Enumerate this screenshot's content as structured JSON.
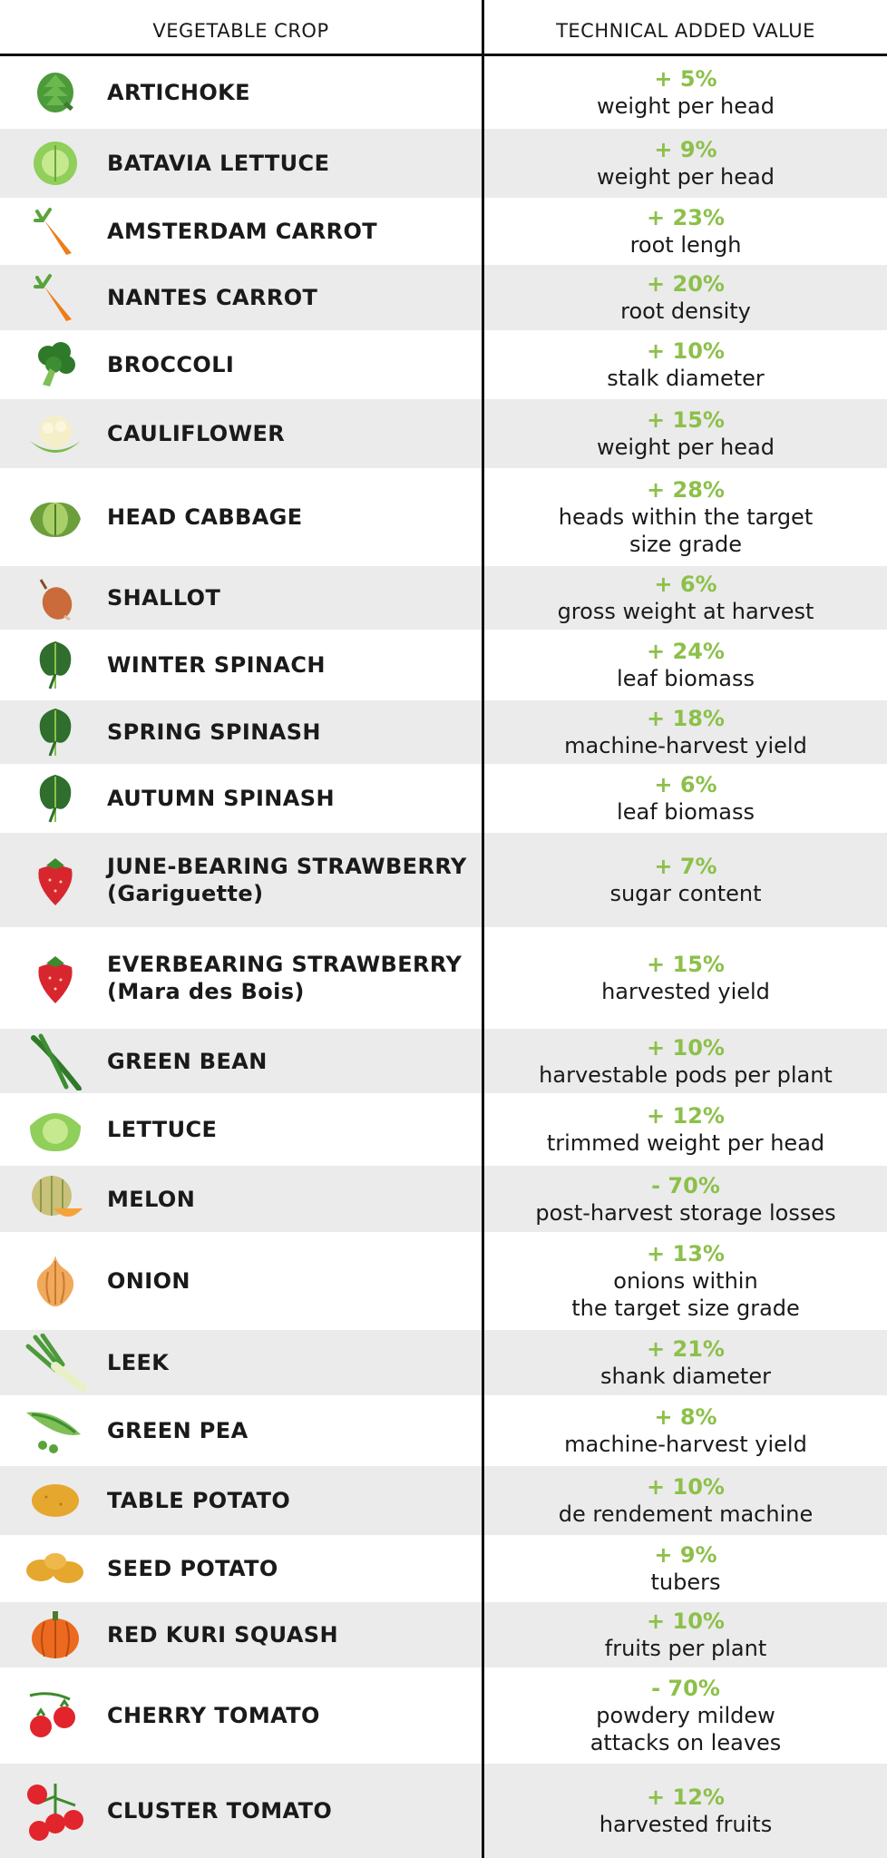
{
  "header": {
    "crop": "VEGETABLE CROP",
    "value": "TECHNICAL ADDED VALUE"
  },
  "colors": {
    "percent": "#8cc04a",
    "shade": "#ebebeb",
    "rule": "#111111"
  },
  "rows": [
    {
      "crop": "ARTICHOKE",
      "sub": "",
      "pct": "+ 5%",
      "desc": "weight per head",
      "desc2": "",
      "icon": "artichoke-icon"
    },
    {
      "crop": "BATAVIA LETTUCE",
      "sub": "",
      "pct": "+ 9%",
      "desc": "weight per head",
      "desc2": "",
      "icon": "batavia-lettuce-icon"
    },
    {
      "crop": "AMSTERDAM CARROT",
      "sub": "",
      "pct": "+ 23%",
      "desc": "root lengh",
      "desc2": "",
      "icon": "carrot-icon"
    },
    {
      "crop": "NANTES CARROT",
      "sub": "",
      "pct": "+ 20%",
      "desc": "root density",
      "desc2": "",
      "icon": "carrot-icon"
    },
    {
      "crop": "BROCCOLI",
      "sub": "",
      "pct": "+ 10%",
      "desc": "stalk diameter",
      "desc2": "",
      "icon": "broccoli-icon"
    },
    {
      "crop": "CAULIFLOWER",
      "sub": "",
      "pct": "+ 15%",
      "desc": "weight per head",
      "desc2": "",
      "icon": "cauliflower-icon"
    },
    {
      "crop": "HEAD CABBAGE",
      "sub": "",
      "pct": "+ 28%",
      "desc": "heads within the target",
      "desc2": "size grade",
      "icon": "cabbage-icon"
    },
    {
      "crop": "SHALLOT",
      "sub": "",
      "pct": "+ 6%",
      "desc": "gross weight at harvest",
      "desc2": "",
      "icon": "shallot-icon"
    },
    {
      "crop": "WINTER SPINACH",
      "sub": "",
      "pct": "+ 24%",
      "desc": "leaf biomass",
      "desc2": "",
      "icon": "spinach-icon"
    },
    {
      "crop": "SPRING SPINASH",
      "sub": "",
      "pct": "+ 18%",
      "desc": "machine-harvest yield",
      "desc2": "",
      "icon": "spinach-icon"
    },
    {
      "crop": "AUTUMN SPINASH",
      "sub": "",
      "pct": "+ 6%",
      "desc": "leaf biomass",
      "desc2": "",
      "icon": "spinach-icon"
    },
    {
      "crop": "JUNE-BEARING STRAWBERRY",
      "sub": "(Gariguette)",
      "pct": "+ 7%",
      "desc": "sugar content",
      "desc2": "",
      "icon": "strawberry-icon"
    },
    {
      "crop": "EVERBEARING STRAWBERRY",
      "sub": "(Mara des Bois)",
      "pct": "+ 15%",
      "desc": "harvested yield",
      "desc2": "",
      "icon": "strawberry-icon"
    },
    {
      "crop": "GREEN BEAN",
      "sub": "",
      "pct": "+ 10%",
      "desc": "harvestable pods per plant",
      "desc2": "",
      "icon": "green-bean-icon"
    },
    {
      "crop": "LETTUCE",
      "sub": "",
      "pct": "+ 12%",
      "desc": "trimmed weight per head",
      "desc2": "",
      "icon": "lettuce-icon"
    },
    {
      "crop": "MELON",
      "sub": "",
      "pct": "- 70%",
      "desc": "post-harvest storage losses",
      "desc2": "",
      "icon": "melon-icon"
    },
    {
      "crop": "ONION",
      "sub": "",
      "pct": "+ 13%",
      "desc": "onions within",
      "desc2": "the target size grade",
      "icon": "onion-icon"
    },
    {
      "crop": "LEEK",
      "sub": "",
      "pct": "+ 21%",
      "desc": "shank diameter",
      "desc2": "",
      "icon": "leek-icon"
    },
    {
      "crop": "GREEN PEA",
      "sub": "",
      "pct": "+ 8%",
      "desc": "machine-harvest yield",
      "desc2": "",
      "icon": "green-pea-icon"
    },
    {
      "crop": "TABLE POTATO",
      "sub": "",
      "pct": "+ 10%",
      "desc": "de rendement machine",
      "desc2": "",
      "icon": "potato-icon"
    },
    {
      "crop": "SEED POTATO",
      "sub": "",
      "pct": "+ 9%",
      "desc": "tubers",
      "desc2": "",
      "icon": "seed-potato-icon"
    },
    {
      "crop": "RED KURI SQUASH",
      "sub": "",
      "pct": "+ 10%",
      "desc": "fruits per plant",
      "desc2": "",
      "icon": "squash-icon"
    },
    {
      "crop": "CHERRY TOMATO",
      "sub": "",
      "pct": "- 70%",
      "desc": "powdery mildew",
      "desc2": "attacks on leaves",
      "icon": "cherry-tomato-icon"
    },
    {
      "crop": "CLUSTER TOMATO",
      "sub": "",
      "pct": "+ 12%",
      "desc": "harvested fruits",
      "desc2": "",
      "icon": "cluster-tomato-icon"
    }
  ]
}
